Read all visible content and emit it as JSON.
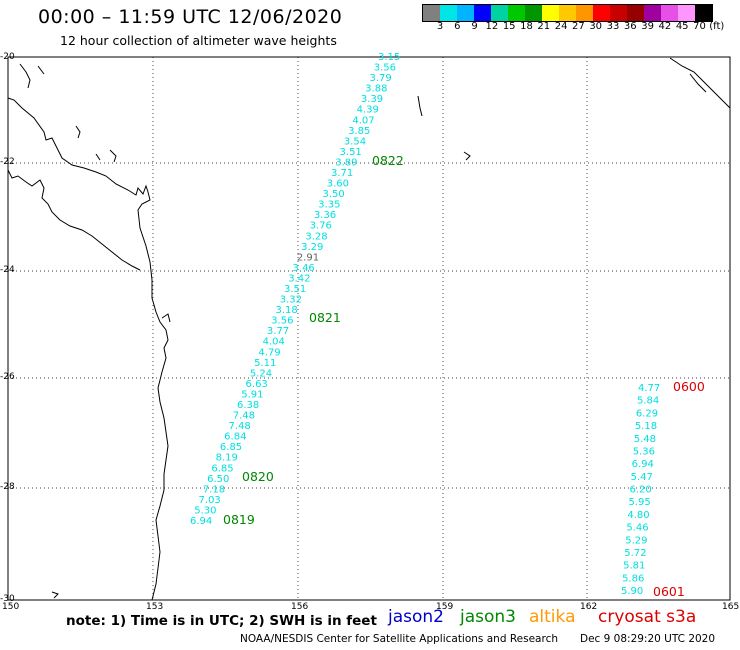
{
  "header": {
    "title": "00:00 – 11:59 UTC 12/06/2020",
    "subtitle": "12 hour collection of altimeter wave heights"
  },
  "colorbar": {
    "colors": [
      "#808080",
      "#00e5e5",
      "#00b4ff",
      "#0000ff",
      "#00d2a0",
      "#00c800",
      "#009600",
      "#ffff00",
      "#ffc800",
      "#ff9600",
      "#ff0000",
      "#c80000",
      "#960000",
      "#a000a0",
      "#e650e6",
      "#ff96ff",
      "#000000"
    ],
    "labels": [
      "3",
      "6",
      "9",
      "12",
      "15",
      "18",
      "21",
      "24",
      "27",
      "30",
      "33",
      "36",
      "39",
      "42",
      "45",
      "70",
      "(ft)"
    ]
  },
  "axes": {
    "x_ticks": [
      "150",
      "153",
      "156",
      "159",
      "162",
      "165"
    ],
    "y_ticks": [
      "-20",
      "-22",
      "-24",
      "-26",
      "-28",
      "-30"
    ]
  },
  "tracks": [
    {
      "satellite": "jason3",
      "color": "#00e0e0",
      "values": [
        "3.15",
        "3.56",
        "3.79",
        "3.88",
        "3.39",
        "4.39",
        "4.07",
        "3.85",
        "3.54",
        "3.51",
        "3.89",
        "3.71",
        "3.60",
        "3.50",
        "3.35",
        "3.36",
        "3.76",
        "3.28",
        "3.29",
        "2.91",
        "3.46",
        "3.42",
        "3.51",
        "3.32",
        "3.18",
        "3.56",
        "3.77",
        "4.04",
        "4.79",
        "5.11",
        "5.24",
        "6.63",
        "5.91",
        "6.38",
        "7.48",
        "7.48",
        "6.84",
        "6.85",
        "8.19",
        "6.85",
        "6.50",
        "7.18",
        "7.03",
        "5.30",
        "6.94"
      ],
      "time_labels": [
        "0822",
        "0821",
        "0820",
        "0819"
      ]
    },
    {
      "satellite": "cryosat",
      "color": "#00e0e0",
      "values": [
        "4.77",
        "5.84",
        "6.29",
        "5.18",
        "5.48",
        "5.36",
        "6.94",
        "5.47",
        "6.20",
        "5.95",
        "4.80",
        "5.46",
        "5.29",
        "5.72",
        "5.81",
        "5.86",
        "5.90"
      ],
      "time_labels": [
        "0600",
        "0601"
      ]
    }
  ],
  "note": "note: 1) Time is in UTC; 2) SWH is in feet",
  "legend": [
    {
      "label": "jason2",
      "color": "#0000cc"
    },
    {
      "label": "jason3",
      "color": "#008800"
    },
    {
      "label": "altika",
      "color": "#ff9900"
    },
    {
      "label": "cryosat s3a",
      "color": "#dd0000"
    }
  ],
  "footer": {
    "credit": "NOAA/NESDIS Center for Satellite Applications and Research",
    "timestamp": "Dec  9 08:29:20 UTC 2020"
  }
}
